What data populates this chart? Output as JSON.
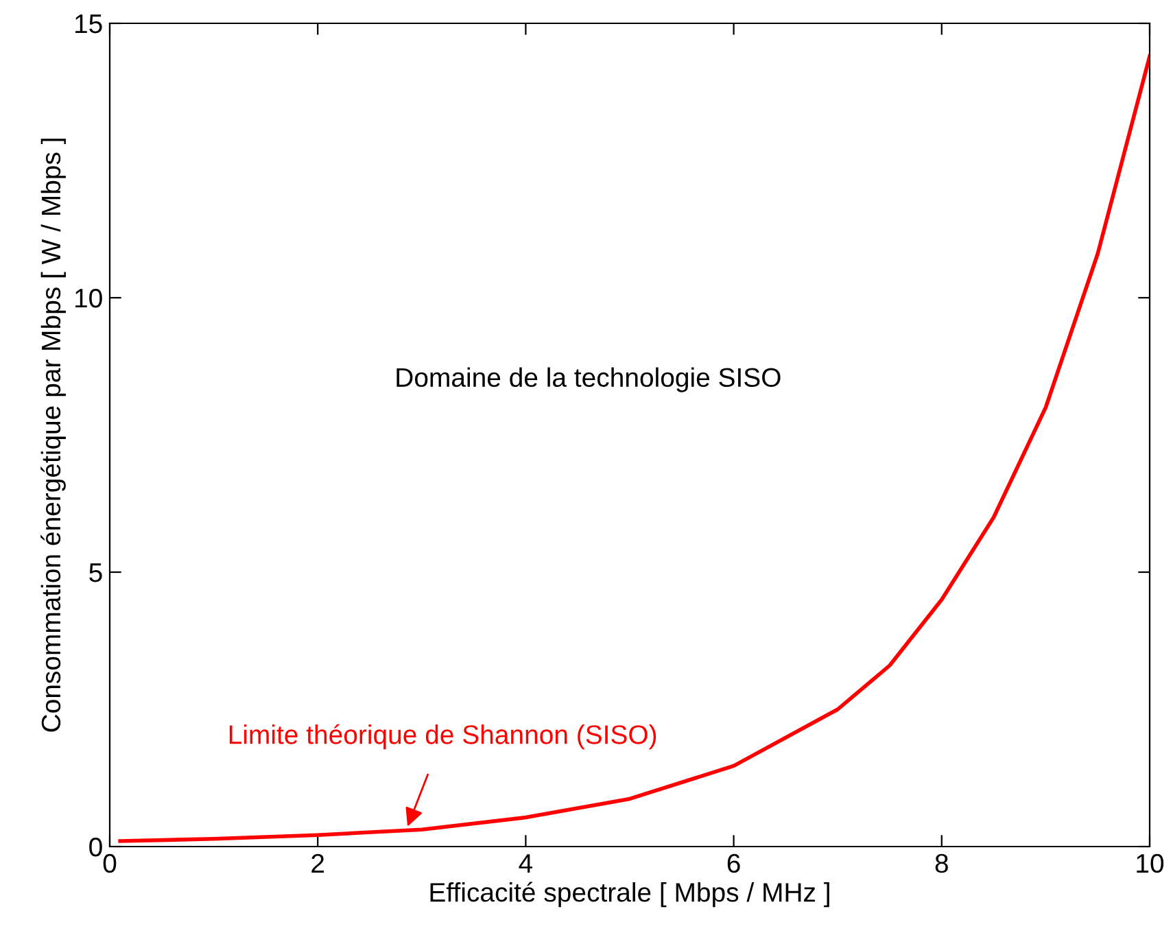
{
  "chart_data": {
    "type": "line",
    "xlabel": "Efficacité spectrale [ Mbps / MHz ]",
    "ylabel": "Consommation énergétique par Mbps [ W / Mbps ]",
    "series": [
      {
        "color": "#ff0000",
        "x": [
          0.1,
          1,
          2,
          3,
          4,
          5,
          6,
          7,
          7.5,
          8,
          8.5,
          9,
          9.5,
          10
        ],
        "values": [
          0.1,
          0.14,
          0.21,
          0.31,
          0.53,
          0.87,
          1.47,
          2.5,
          3.3,
          4.5,
          6.0,
          8.0,
          10.8,
          14.4
        ]
      }
    ],
    "annotations": [
      "Domaine de la technologie SISO",
      {
        "text": "Limite théorique de Shannon (SISO)",
        "x": 2.85,
        "y": 0.3
      }
    ],
    "xlim": [
      0,
      10
    ],
    "xticks": [
      0,
      2,
      4,
      6,
      8,
      10
    ],
    "ylim": [
      0,
      15
    ],
    "yticks": [
      0,
      5,
      10,
      15
    ],
    "grid": false,
    "legend": false,
    "marker": "none",
    "line_style": "solid"
  }
}
